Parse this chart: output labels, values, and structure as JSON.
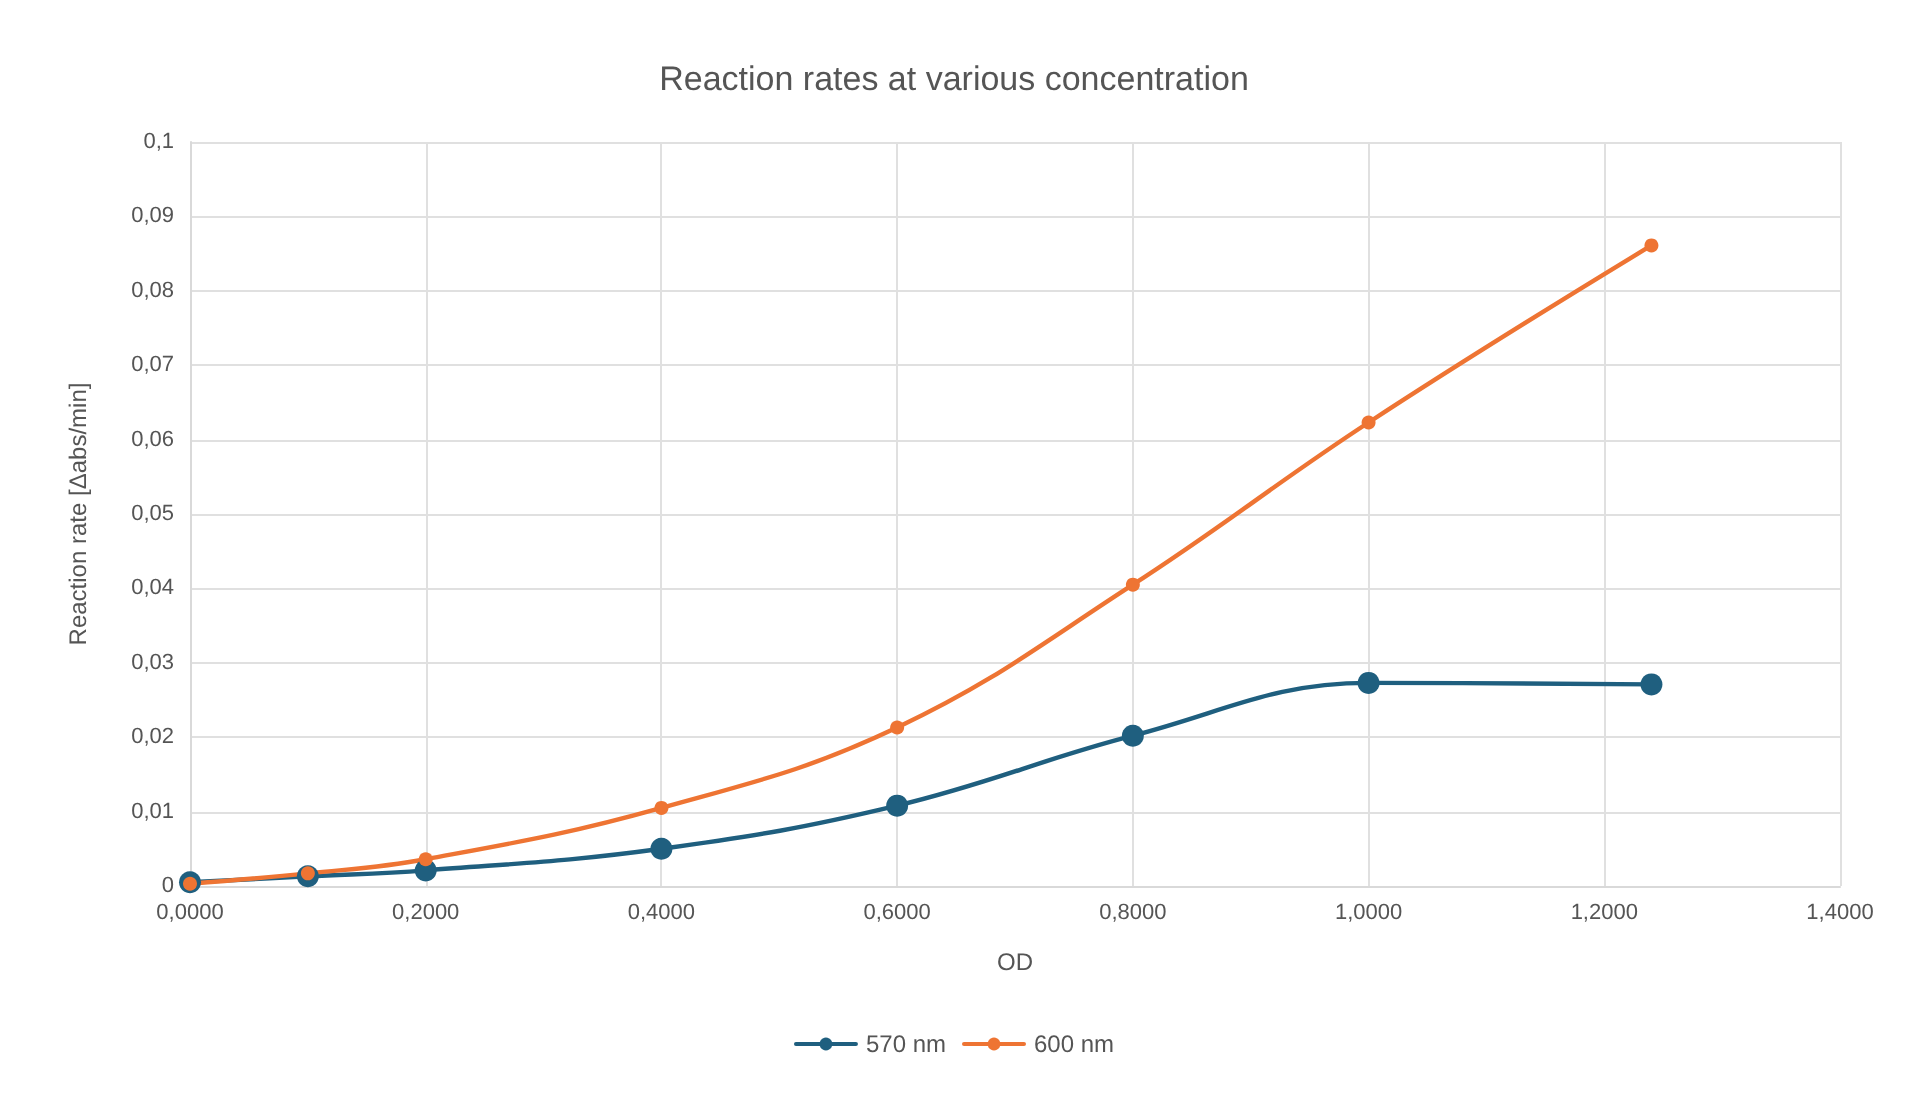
{
  "chart_data": {
    "type": "line",
    "title": "Reaction rates at various concentration",
    "xlabel": "OD",
    "ylabel": "Reaction rate [Δabs/min]",
    "x": [
      0,
      0.1,
      0.2,
      0.4,
      0.6,
      0.8,
      1.0,
      1.24
    ],
    "series": [
      {
        "name": "570 nm",
        "color": "#1f5f7f",
        "values": [
          0.0005,
          0.0013,
          0.0021,
          0.005,
          0.0108,
          0.0202,
          0.0273,
          0.0271
        ]
      },
      {
        "name": "600 nm",
        "color": "#ee7433",
        "values": [
          0.0003,
          0.0017,
          0.0036,
          0.0105,
          0.0213,
          0.0405,
          0.0623,
          0.0861
        ]
      }
    ],
    "xlim": [
      0,
      1.4
    ],
    "xticks": [
      {
        "value": 0,
        "label": "0,0000"
      },
      {
        "value": 0.2,
        "label": "0,2000"
      },
      {
        "value": 0.4,
        "label": "0,4000"
      },
      {
        "value": 0.6,
        "label": "0,6000"
      },
      {
        "value": 0.8,
        "label": "0,8000"
      },
      {
        "value": 1.0,
        "label": "1,0000"
      },
      {
        "value": 1.2,
        "label": "1,2000"
      },
      {
        "value": 1.4,
        "label": "1,4000"
      }
    ],
    "ylim": [
      0,
      0.1
    ],
    "yticks": [
      0,
      {
        "value": 0.01,
        "label": "0,01"
      },
      {
        "value": 0.02,
        "label": "0,02"
      },
      {
        "value": 0.03,
        "label": "0,03"
      },
      {
        "value": 0.04,
        "label": "0,04"
      },
      {
        "value": 0.05,
        "label": "0,05"
      },
      {
        "value": 0.06,
        "label": "0,06"
      },
      {
        "value": 0.07,
        "label": "0,07"
      },
      {
        "value": 0.08,
        "label": "0,08"
      },
      {
        "value": 0.09,
        "label": "0,09"
      },
      {
        "value": 0.1,
        "label": "0,1"
      }
    ],
    "grid": true,
    "legend": "bottom",
    "marker": "circle",
    "line_style": "solid"
  }
}
